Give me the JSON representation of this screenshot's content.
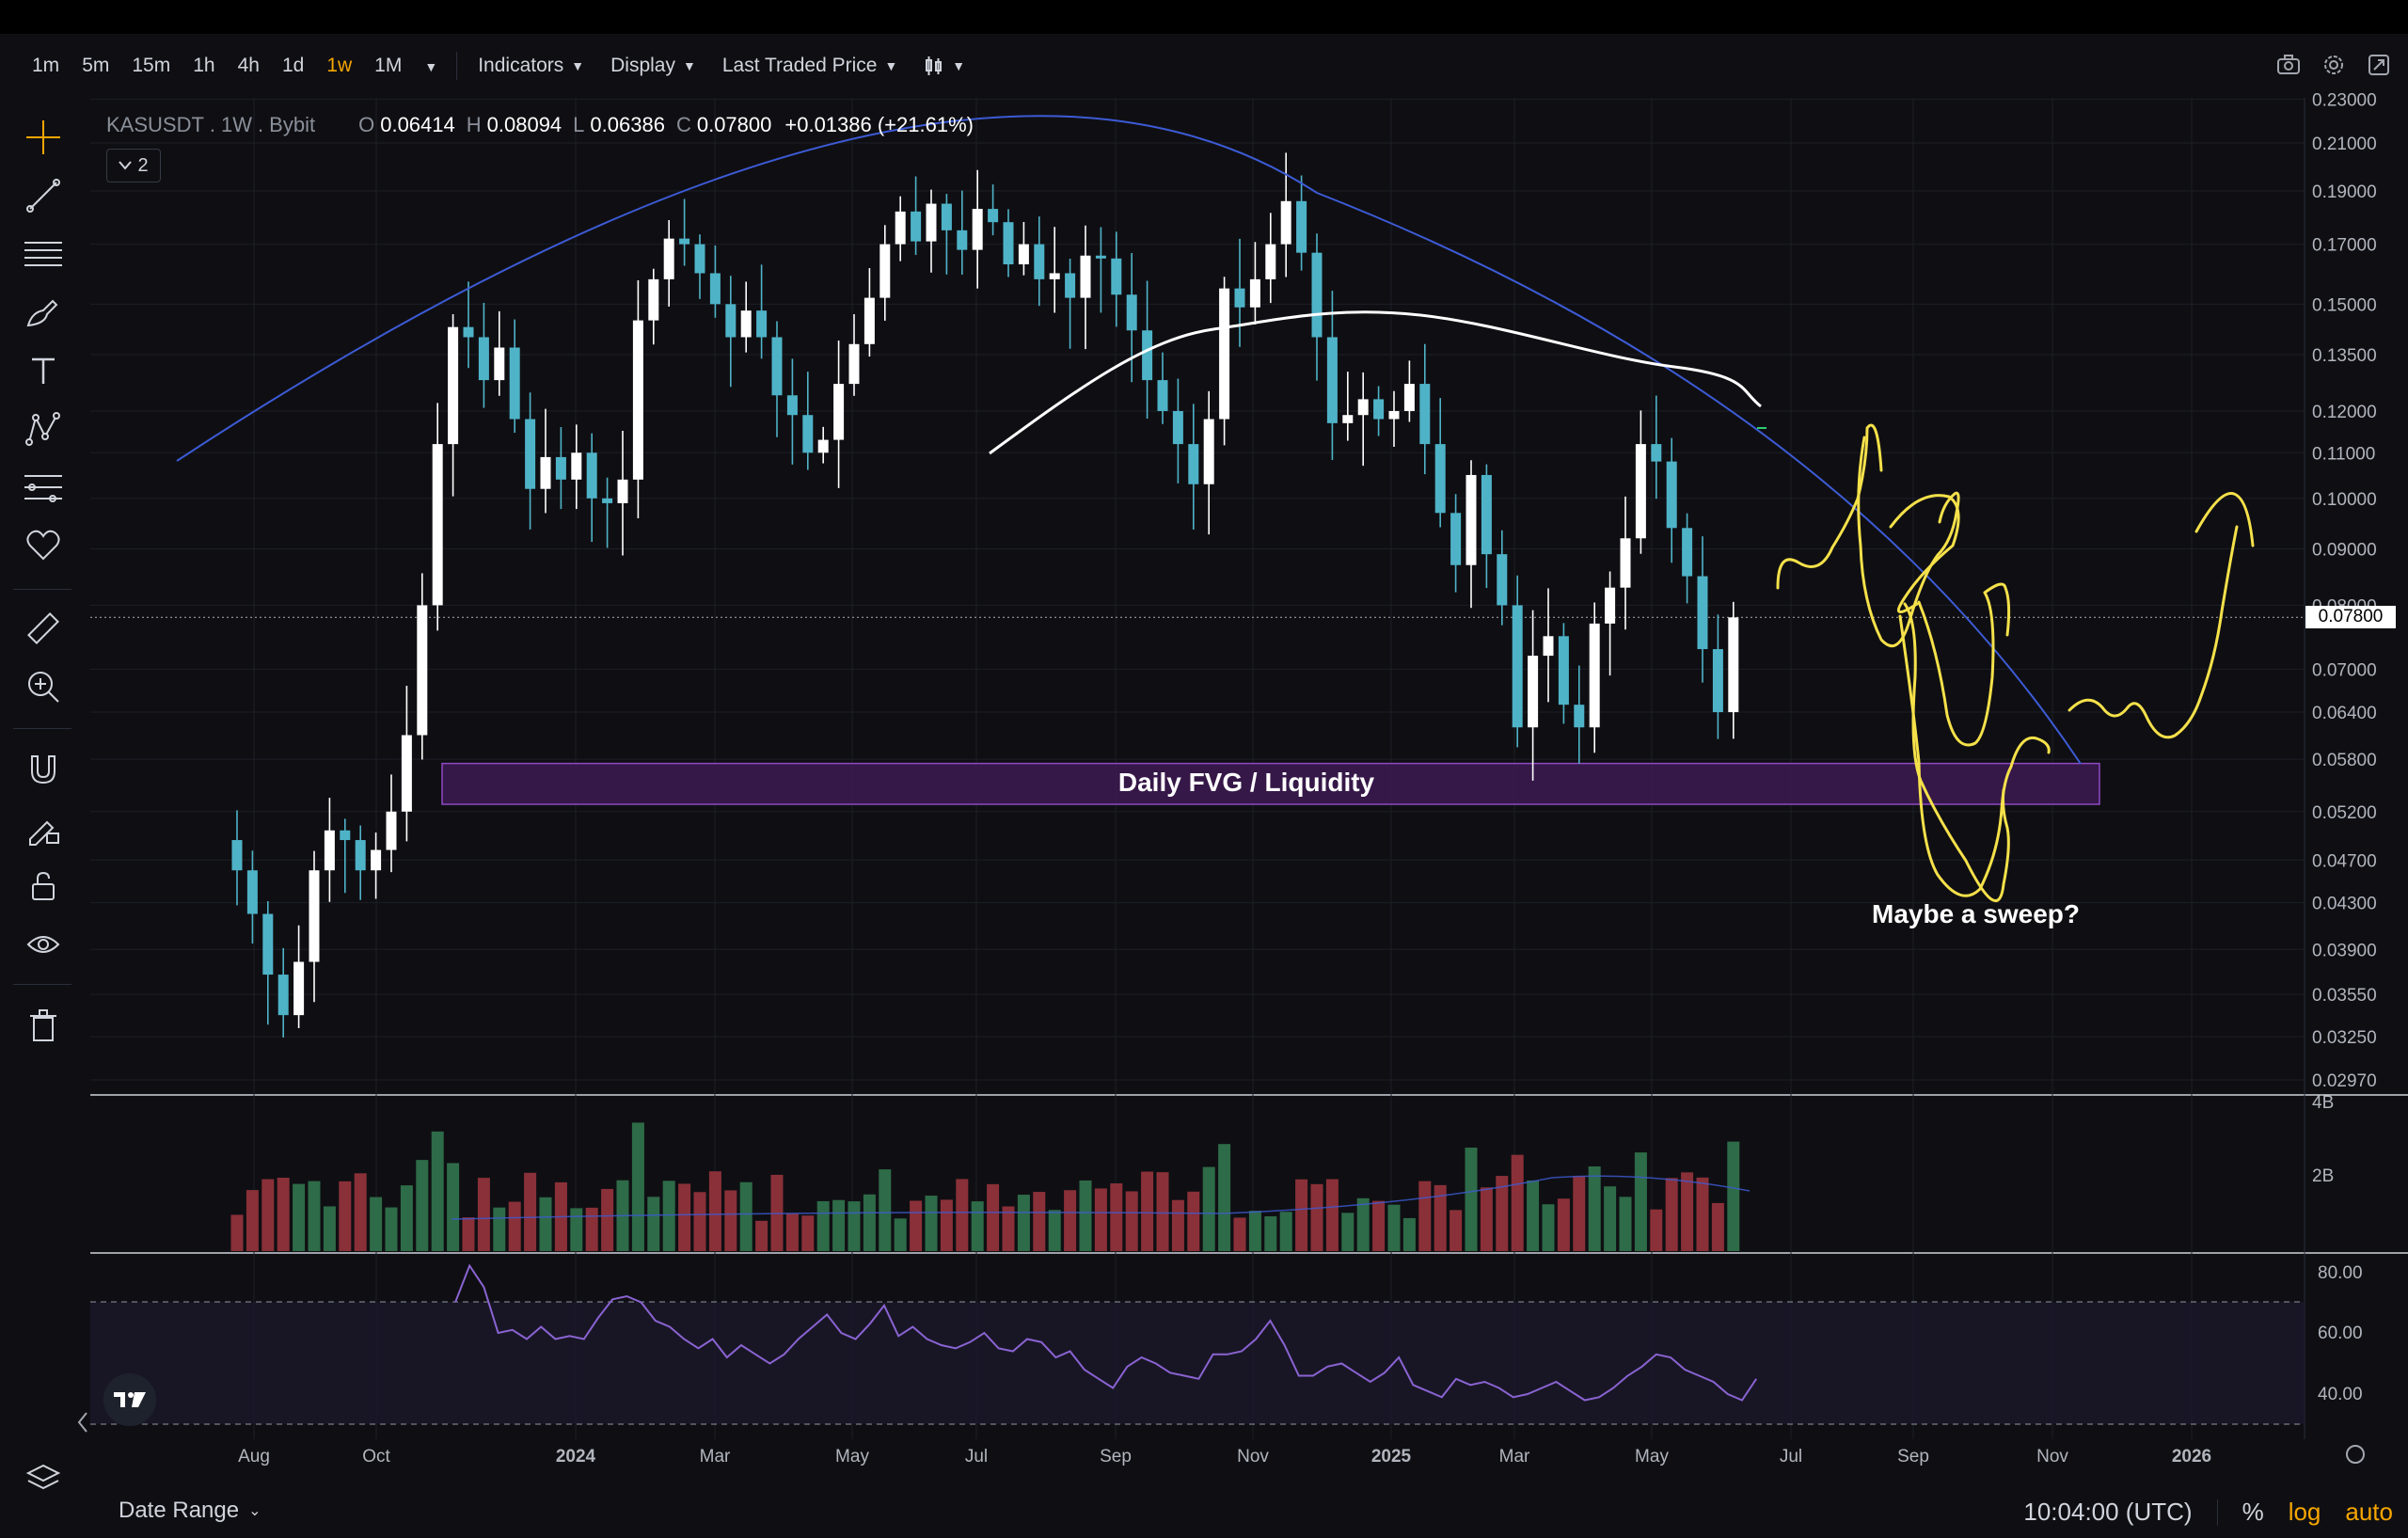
{
  "toolbar": {
    "timeframes": [
      "1m",
      "5m",
      "15m",
      "1h",
      "4h",
      "1d",
      "1w",
      "1M"
    ],
    "active_timeframe": "1w",
    "indicators_label": "Indicators",
    "display_label": "Display",
    "price_type_label": "Last Traded Price"
  },
  "legend": {
    "symbol": "KASUSDT",
    "interval": "1W",
    "exchange": "Bybit",
    "o_label": "O",
    "o": "0.06414",
    "h_label": "H",
    "h": "0.08094",
    "l_label": "L",
    "l": "0.06386",
    "c_label": "C",
    "c": "0.07800",
    "change": "+0.01386 (+21.61%)",
    "indicator_count": "2"
  },
  "annotations": {
    "fvg": "Daily FVG / Liquidity",
    "sweep": "Maybe a sweep?"
  },
  "last_price_tag": "0.07800",
  "bottom": {
    "date_range": "Date Range",
    "time": "10:04:00 (UTC)",
    "percent": "%",
    "log": "log",
    "auto": "auto"
  },
  "colors": {
    "bull": "#ffffff",
    "bear": "#4fb3c8",
    "accent": "#f7a600",
    "fvg_zone": "#3a1a4e",
    "arc": "#3d5bd6",
    "ma": "#ffffff",
    "drawing": "#f5e14a",
    "rsi": "#8a63d2",
    "vol_up": "#2e6b48",
    "vol_down": "#8a3038"
  },
  "chart_data": {
    "type": "candlestick",
    "price_axis_ticks": [
      "0.23000",
      "0.21000",
      "0.19000",
      "0.17000",
      "0.15000",
      "0.13500",
      "0.12000",
      "0.11000",
      "0.10000",
      "0.09000",
      "0.08000",
      "0.07000",
      "0.06400",
      "0.05800",
      "0.05200",
      "0.04700",
      "0.04300",
      "0.03900",
      "0.03550",
      "0.03250",
      "0.02970"
    ],
    "volume_axis_ticks": [
      "4B",
      "2B"
    ],
    "rsi_axis_ticks": [
      "80.00",
      "60.00",
      "40.00"
    ],
    "time_axis_labels": [
      "Aug",
      "Oct",
      "2024",
      "Mar",
      "May",
      "Jul",
      "Sep",
      "Nov",
      "2025",
      "Mar",
      "May",
      "Jul",
      "Sep",
      "Nov",
      "2026"
    ],
    "log_scale": true,
    "fvg_zone": [
      0.0528,
      0.0575
    ]
  }
}
